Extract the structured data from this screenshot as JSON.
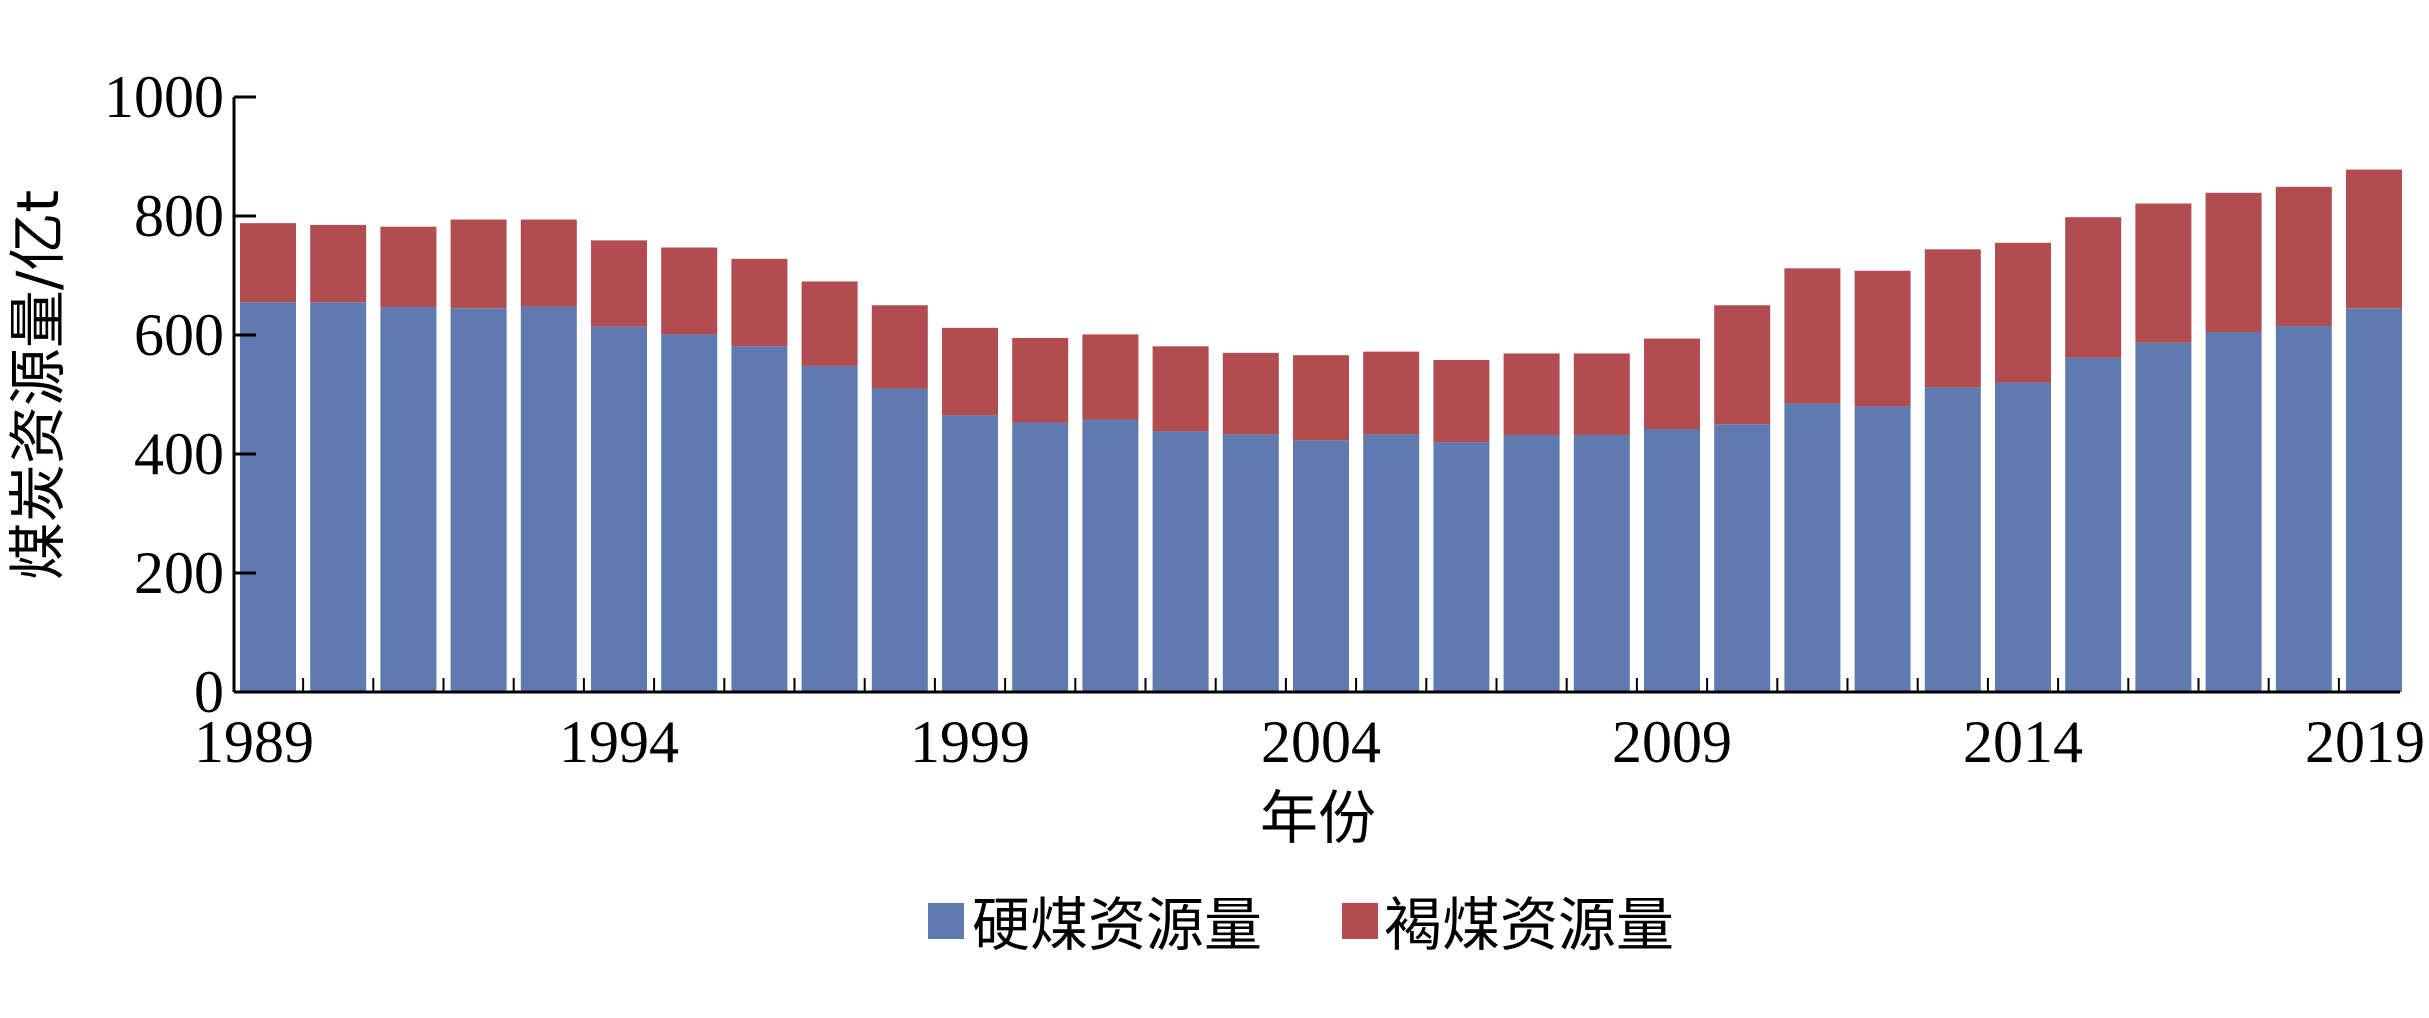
{
  "chart_data": {
    "type": "bar",
    "stacked": true,
    "xlabel": "年份",
    "ylabel": "煤炭资源量/亿t",
    "ylim": [
      0,
      1000
    ],
    "yticks": [
      "0",
      "200",
      "400",
      "600",
      "800",
      "1000"
    ],
    "xtick_labels": [
      "1989",
      "1994",
      "1999",
      "2004",
      "2009",
      "2014",
      "2019"
    ],
    "categories": [
      1989,
      1990,
      1991,
      1992,
      1993,
      1994,
      1995,
      1996,
      1997,
      1998,
      1999,
      2000,
      2001,
      2002,
      2003,
      2004,
      2005,
      2006,
      2007,
      2008,
      2009,
      2010,
      2011,
      2012,
      2013,
      2014,
      2015,
      2016,
      2017,
      2018,
      2019
    ],
    "series": [
      {
        "name": "硬煤资源量",
        "color": "#5F7AAF",
        "values": [
          655,
          655,
          647,
          645,
          648,
          614,
          601,
          581,
          548,
          510,
          465,
          453,
          458,
          438,
          433,
          423,
          433,
          420,
          432,
          432,
          442,
          450,
          485,
          480,
          512,
          520,
          562,
          587,
          605,
          615,
          645
        ]
      },
      {
        "name": "褐煤资源量",
        "color": "#B14D50",
        "values": [
          133,
          130,
          135,
          149,
          146,
          145,
          146,
          147,
          142,
          140,
          147,
          142,
          143,
          143,
          137,
          143,
          139,
          138,
          137,
          137,
          152,
          200,
          227,
          228,
          232,
          235,
          236,
          234,
          234,
          234,
          233
        ]
      }
    ],
    "legend_position": "bottom-center",
    "grid": false
  }
}
